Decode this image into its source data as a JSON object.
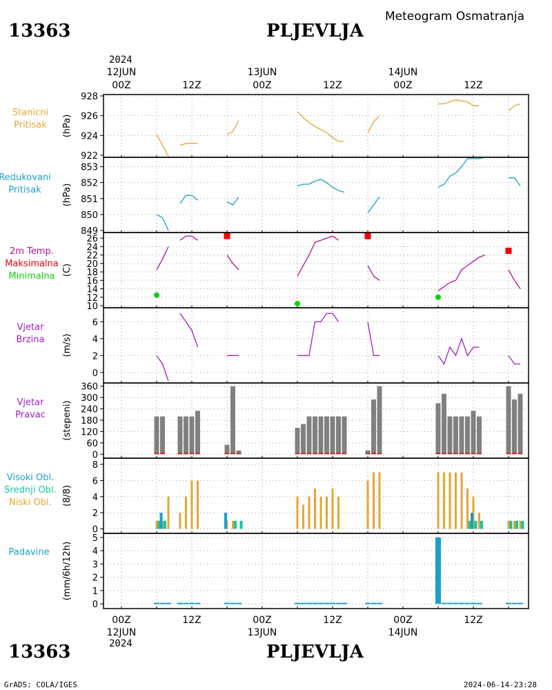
{
  "header": {
    "station_id": "13363",
    "station_name": "PLJEVLJA",
    "meteogram_title": "Meteogram Osmatranja"
  },
  "footer": {
    "left": "GrADS: COLA/IGES",
    "right": "2024-06-14-23:28"
  },
  "time_axis": {
    "year": "2024",
    "ticks": [
      {
        "hour": 0,
        "time": "00Z",
        "date": "12JUN"
      },
      {
        "hour": 12,
        "time": "12Z",
        "date": ""
      },
      {
        "hour": 24,
        "time": "00Z",
        "date": "13JUN"
      },
      {
        "hour": 36,
        "time": "12Z",
        "date": ""
      },
      {
        "hour": 48,
        "time": "00Z",
        "date": "14JUN"
      },
      {
        "hour": 60,
        "time": "12Z",
        "date": ""
      }
    ]
  },
  "panel_labels": {
    "p1": [
      "Stanicni",
      "Pritisak"
    ],
    "p2": [
      "Redukovani",
      "Pritisak"
    ],
    "p3": [
      "2m Temp.",
      "Maksimalna",
      "Minimalna"
    ],
    "p4": [
      "Vjetar",
      "Brzina"
    ],
    "p5": [
      "Vjetar",
      "Pravac"
    ],
    "p6": [
      "Visoki Obl.",
      "Srednji Obl.",
      "Niski Obl."
    ],
    "p7": [
      "Padavine"
    ]
  },
  "units": {
    "p1": "(hPa)",
    "p2": "(hPa)",
    "p3": "(C)",
    "p4": "(m/s)",
    "p5": "(stepeni)",
    "p6": "(8/8)",
    "p7": "(mm/6h/12h)"
  },
  "colors": {
    "station_pressure": "#e6a532",
    "reduced_pressure": "#1aa0c8",
    "temperature": "#b4148c",
    "tmax": "#f00000",
    "tmin": "#10d010",
    "wind_speed": "#a01ec8",
    "wind_dir_label": "#a01ec8",
    "wind_dir_bar": "#808080",
    "wind_dir_low": "#c03030",
    "high_cloud": "#1aa0c8",
    "mid_cloud": "#10c8a0",
    "low_cloud": "#e6a532",
    "precip": "#1aa0c8"
  },
  "chart_data": [
    {
      "id": "p1",
      "type": "line",
      "ylim": [
        922,
        928
      ],
      "yticks": [
        "922",
        "924",
        "926",
        "928"
      ],
      "segments": [
        [
          [
            6,
            924.1
          ],
          [
            7,
            923.0
          ],
          [
            8,
            921.9
          ]
        ],
        [
          [
            10,
            923.0
          ],
          [
            11,
            923.2
          ],
          [
            12,
            923.2
          ],
          [
            13,
            923.2
          ]
        ],
        [
          [
            18,
            924.1
          ],
          [
            19,
            924.4
          ],
          [
            20,
            925.5
          ]
        ],
        [
          [
            30,
            926.4
          ],
          [
            31,
            925.8
          ],
          [
            32,
            925.3
          ],
          [
            33,
            924.9
          ],
          [
            34,
            924.6
          ],
          [
            35,
            924.3
          ],
          [
            36,
            923.8
          ],
          [
            37,
            923.4
          ],
          [
            38,
            923.4
          ]
        ],
        [
          [
            42,
            924.2
          ],
          [
            43,
            925.4
          ],
          [
            44,
            926.0
          ]
        ],
        [
          [
            54,
            927.2
          ],
          [
            55,
            927.2
          ],
          [
            56,
            927.4
          ],
          [
            57,
            927.6
          ],
          [
            58,
            927.5
          ],
          [
            59,
            927.4
          ],
          [
            60,
            927.0
          ],
          [
            61,
            927.0
          ]
        ],
        [
          [
            66,
            926.5
          ],
          [
            67,
            927.0
          ],
          [
            68,
            927.2
          ]
        ]
      ]
    },
    {
      "id": "p2",
      "type": "line",
      "ylim": [
        849,
        853.5
      ],
      "yticks": [
        "849",
        "850",
        "851",
        "852",
        "853"
      ],
      "segments": [
        [
          [
            6,
            850.0
          ],
          [
            7,
            849.8
          ],
          [
            8,
            849.0
          ]
        ],
        [
          [
            10,
            850.7
          ],
          [
            11,
            851.2
          ],
          [
            12,
            851.2
          ],
          [
            13,
            850.9
          ]
        ],
        [
          [
            18,
            850.8
          ],
          [
            19,
            850.6
          ],
          [
            20,
            851.1
          ]
        ],
        [
          [
            30,
            851.8
          ],
          [
            31,
            851.9
          ],
          [
            32,
            851.9
          ],
          [
            33,
            852.1
          ],
          [
            34,
            852.2
          ],
          [
            35,
            852.0
          ],
          [
            36,
            851.7
          ],
          [
            37,
            851.5
          ],
          [
            38,
            851.4
          ]
        ],
        [
          [
            42,
            850.1
          ],
          [
            43,
            850.6
          ],
          [
            44,
            851.1
          ]
        ],
        [
          [
            54,
            851.7
          ],
          [
            55,
            851.9
          ],
          [
            56,
            852.4
          ],
          [
            57,
            852.6
          ],
          [
            58,
            853.0
          ],
          [
            59,
            853.5
          ],
          [
            60,
            853.5
          ],
          [
            61,
            853.5
          ],
          [
            62,
            853.6
          ]
        ],
        [
          [
            66,
            852.3
          ],
          [
            67,
            852.3
          ],
          [
            68,
            851.8
          ]
        ]
      ]
    },
    {
      "id": "p3",
      "type": "line+scatter",
      "ylim": [
        10,
        27
      ],
      "yticks": [
        "10",
        "12",
        "14",
        "16",
        "18",
        "20",
        "22",
        "24",
        "26"
      ],
      "segments": [
        [
          [
            6,
            18.5
          ],
          [
            7,
            21.0
          ],
          [
            8,
            24.0
          ]
        ],
        [
          [
            10,
            25.5
          ],
          [
            11,
            26.5
          ],
          [
            12,
            26.5
          ],
          [
            13,
            25.5
          ]
        ],
        [
          [
            18,
            22.0
          ],
          [
            19,
            20.0
          ],
          [
            20,
            18.5
          ]
        ],
        [
          [
            30,
            17.0
          ],
          [
            31,
            19.5
          ],
          [
            32,
            22.0
          ],
          [
            33,
            25.0
          ],
          [
            34,
            25.5
          ],
          [
            35,
            26.0
          ],
          [
            36,
            26.5
          ],
          [
            37,
            25.5
          ]
        ],
        [
          [
            42,
            19.5
          ],
          [
            43,
            17.0
          ],
          [
            44,
            16.0
          ]
        ],
        [
          [
            54,
            13.5
          ],
          [
            55,
            14.5
          ],
          [
            56,
            15.5
          ],
          [
            57,
            16.0
          ],
          [
            58,
            18.5
          ],
          [
            59,
            19.5
          ],
          [
            60,
            20.5
          ],
          [
            61,
            21.5
          ],
          [
            62,
            22.0
          ]
        ],
        [
          [
            66,
            18.5
          ],
          [
            67,
            16.0
          ],
          [
            68,
            14.0
          ]
        ]
      ],
      "tmax": [
        [
          18,
          26.5
        ],
        [
          42,
          26.5
        ],
        [
          66,
          23.0
        ]
      ],
      "tmin": [
        [
          6,
          12.5
        ],
        [
          30,
          10.5
        ],
        [
          54,
          12.0
        ]
      ]
    },
    {
      "id": "p4",
      "type": "line",
      "ylim": [
        -1,
        7.5
      ],
      "yticks": [
        "0",
        "2",
        "4",
        "6"
      ],
      "segments": [
        [
          [
            6,
            2
          ],
          [
            7,
            1
          ],
          [
            8,
            -1
          ]
        ],
        [
          [
            10,
            7
          ],
          [
            11,
            6
          ],
          [
            12,
            5
          ],
          [
            13,
            3
          ]
        ],
        [
          [
            18,
            2
          ],
          [
            19,
            2
          ],
          [
            20,
            2
          ]
        ],
        [
          [
            30,
            2
          ],
          [
            31,
            2
          ],
          [
            32,
            2
          ],
          [
            33,
            6
          ],
          [
            34,
            6
          ],
          [
            35,
            7
          ],
          [
            36,
            7
          ],
          [
            37,
            6
          ]
        ],
        [
          [
            42,
            6
          ],
          [
            43,
            2
          ],
          [
            44,
            2
          ]
        ],
        [
          [
            54,
            2
          ],
          [
            55,
            1
          ],
          [
            56,
            3
          ],
          [
            57,
            2
          ],
          [
            58,
            4
          ],
          [
            59,
            2
          ],
          [
            60,
            3
          ],
          [
            61,
            3
          ]
        ],
        [
          [
            66,
            2
          ],
          [
            67,
            1
          ],
          [
            68,
            1
          ]
        ]
      ]
    },
    {
      "id": "p5",
      "type": "bar",
      "ylim": [
        -10,
        370
      ],
      "yticks": [
        "0",
        "60",
        "120",
        "180",
        "240",
        "300",
        "360"
      ],
      "bars": [
        [
          6,
          200
        ],
        [
          7,
          200
        ],
        [
          10,
          200
        ],
        [
          11,
          200
        ],
        [
          12,
          200
        ],
        [
          13,
          230
        ],
        [
          18,
          50
        ],
        [
          19,
          360
        ],
        [
          20,
          20
        ],
        [
          30,
          140
        ],
        [
          31,
          160
        ],
        [
          32,
          200
        ],
        [
          33,
          200
        ],
        [
          34,
          200
        ],
        [
          35,
          200
        ],
        [
          36,
          200
        ],
        [
          37,
          200
        ],
        [
          38,
          200
        ],
        [
          42,
          20
        ],
        [
          43,
          290
        ],
        [
          44,
          360
        ],
        [
          54,
          270
        ],
        [
          55,
          320
        ],
        [
          56,
          200
        ],
        [
          57,
          200
        ],
        [
          58,
          200
        ],
        [
          59,
          200
        ],
        [
          60,
          230
        ],
        [
          61,
          200
        ],
        [
          66,
          360
        ],
        [
          67,
          290
        ],
        [
          68,
          320
        ]
      ]
    },
    {
      "id": "p6",
      "type": "bar",
      "ylim": [
        -0.3,
        8.6
      ],
      "yticks": [
        "0",
        "2",
        "4",
        "6",
        "8"
      ],
      "low": [
        [
          6,
          1
        ],
        [
          7,
          1
        ],
        [
          8,
          4
        ],
        [
          10,
          2
        ],
        [
          11,
          4
        ],
        [
          12,
          6
        ],
        [
          13,
          6
        ],
        [
          18,
          1
        ],
        [
          19,
          1
        ],
        [
          30,
          4
        ],
        [
          31,
          3
        ],
        [
          32,
          4
        ],
        [
          33,
          5
        ],
        [
          34,
          4
        ],
        [
          35,
          4
        ],
        [
          36,
          5
        ],
        [
          37,
          4
        ],
        [
          42,
          6
        ],
        [
          43,
          7
        ],
        [
          44,
          7
        ],
        [
          54,
          7
        ],
        [
          55,
          7
        ],
        [
          56,
          7
        ],
        [
          57,
          7
        ],
        [
          58,
          7
        ],
        [
          59,
          5
        ],
        [
          60,
          4
        ],
        [
          61,
          2
        ],
        [
          66,
          1
        ],
        [
          67,
          1
        ],
        [
          68,
          1
        ]
      ],
      "mid": [
        [
          6,
          1
        ],
        [
          7,
          1
        ],
        [
          19,
          1
        ],
        [
          20,
          1
        ],
        [
          59,
          1
        ],
        [
          60,
          1
        ],
        [
          61,
          1
        ],
        [
          66,
          1
        ],
        [
          67,
          1
        ],
        [
          68,
          1
        ]
      ],
      "high": [
        [
          7,
          2
        ],
        [
          18,
          2
        ],
        [
          60,
          2
        ]
      ]
    },
    {
      "id": "p7",
      "type": "bar",
      "ylim": [
        -0.2,
        5.2
      ],
      "yticks": [
        "0",
        "1",
        "2",
        "3",
        "4",
        "5"
      ],
      "bars": [
        [
          54,
          5.0
        ]
      ],
      "trace_bars": [
        6,
        7,
        8,
        10,
        11,
        12,
        13,
        18,
        19,
        20,
        30,
        31,
        32,
        33,
        34,
        35,
        36,
        37,
        38,
        42,
        43,
        44,
        55,
        56,
        57,
        58,
        59,
        60,
        61,
        66,
        67,
        68
      ]
    }
  ]
}
